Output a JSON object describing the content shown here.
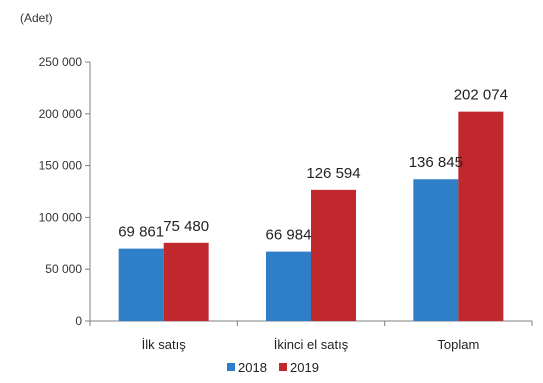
{
  "chart_data": {
    "type": "bar",
    "unit_label": "(Adet)",
    "categories": [
      "İlk satış",
      "İkinci el satış",
      "Toplam"
    ],
    "series": [
      {
        "name": "2018",
        "color": "#2f7fc8",
        "values": [
          69861,
          66984,
          136845
        ],
        "labels": [
          "69 861",
          "66 984",
          "136 845"
        ]
      },
      {
        "name": "2019",
        "color": "#c0282e",
        "values": [
          75480,
          126594,
          202074
        ],
        "labels": [
          "75 480",
          "126 594",
          "202 074"
        ]
      }
    ],
    "ylim": [
      0,
      250000
    ],
    "yticks": [
      0,
      50000,
      100000,
      150000,
      200000,
      250000
    ],
    "ytick_labels": [
      "0",
      "50 000",
      "100 000",
      "150 000",
      "200 000",
      "250 000"
    ],
    "grid": false,
    "legend_position": "bottom"
  }
}
